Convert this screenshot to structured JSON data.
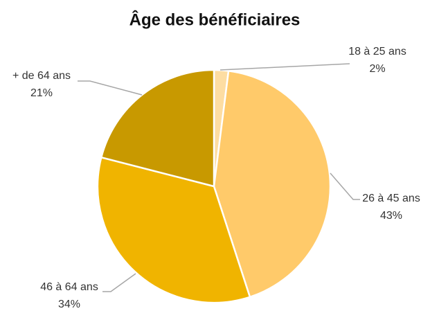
{
  "chart_data": {
    "type": "pie",
    "title": "Âge des bénéficiaires",
    "categories": [
      "18 à 25 ans",
      "26 à 45 ans",
      "46 à 64 ans",
      "+ de 64 ans"
    ],
    "values": [
      2,
      43,
      34,
      21
    ],
    "value_labels": [
      "2%",
      "43%",
      "34%",
      "21%"
    ],
    "colors": [
      "#fddda2",
      "#ffca6a",
      "#f0b400",
      "#c89900"
    ]
  }
}
